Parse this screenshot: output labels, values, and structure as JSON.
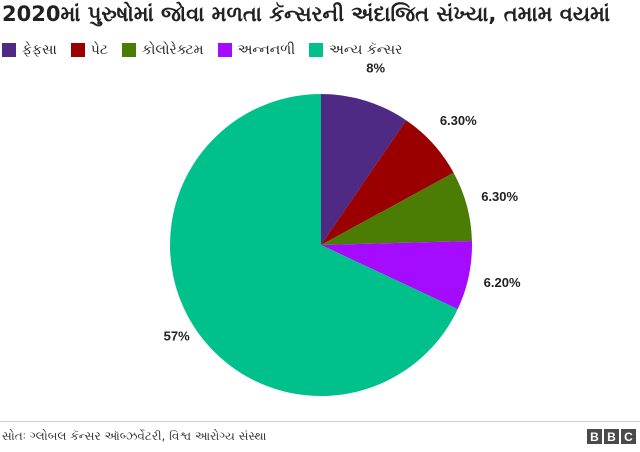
{
  "title": "2020માં પુરુષોમાં જોવા મળતા કૅન્સરની અંદાજિત સંખ્યા, તમામ વયમાં",
  "source": "સોતઃ ગ્લોબલ કૅન્સર ઑબ્ઝર્વેટરી, વિશ્વ આરોગ્ય સંસ્થા",
  "logo": [
    "B",
    "B",
    "C"
  ],
  "chart_data": {
    "type": "pie",
    "title": "2020માં પુરુષોમાં જોવા મળતા કૅન્સરની અંદાજિત સંખ્યા, તમામ વયમાં",
    "legend_position": "top-left",
    "slices": [
      {
        "name": "ફેફસા",
        "value": 8,
        "label": "8%",
        "color": "#4f2a84"
      },
      {
        "name": "પેટ",
        "value": 6.3,
        "label": "6.30%",
        "color": "#9b0000"
      },
      {
        "name": "કોલોરેક્ટમ",
        "value": 6.3,
        "label": "6.30%",
        "color": "#4b7d05"
      },
      {
        "name": "અન્નનળી",
        "value": 6.2,
        "label": "6.20%",
        "color": "#a50cff"
      },
      {
        "name": "અન્ય કૅન્સર",
        "value": 57,
        "label": "57%",
        "color": "#00c08b"
      }
    ]
  }
}
